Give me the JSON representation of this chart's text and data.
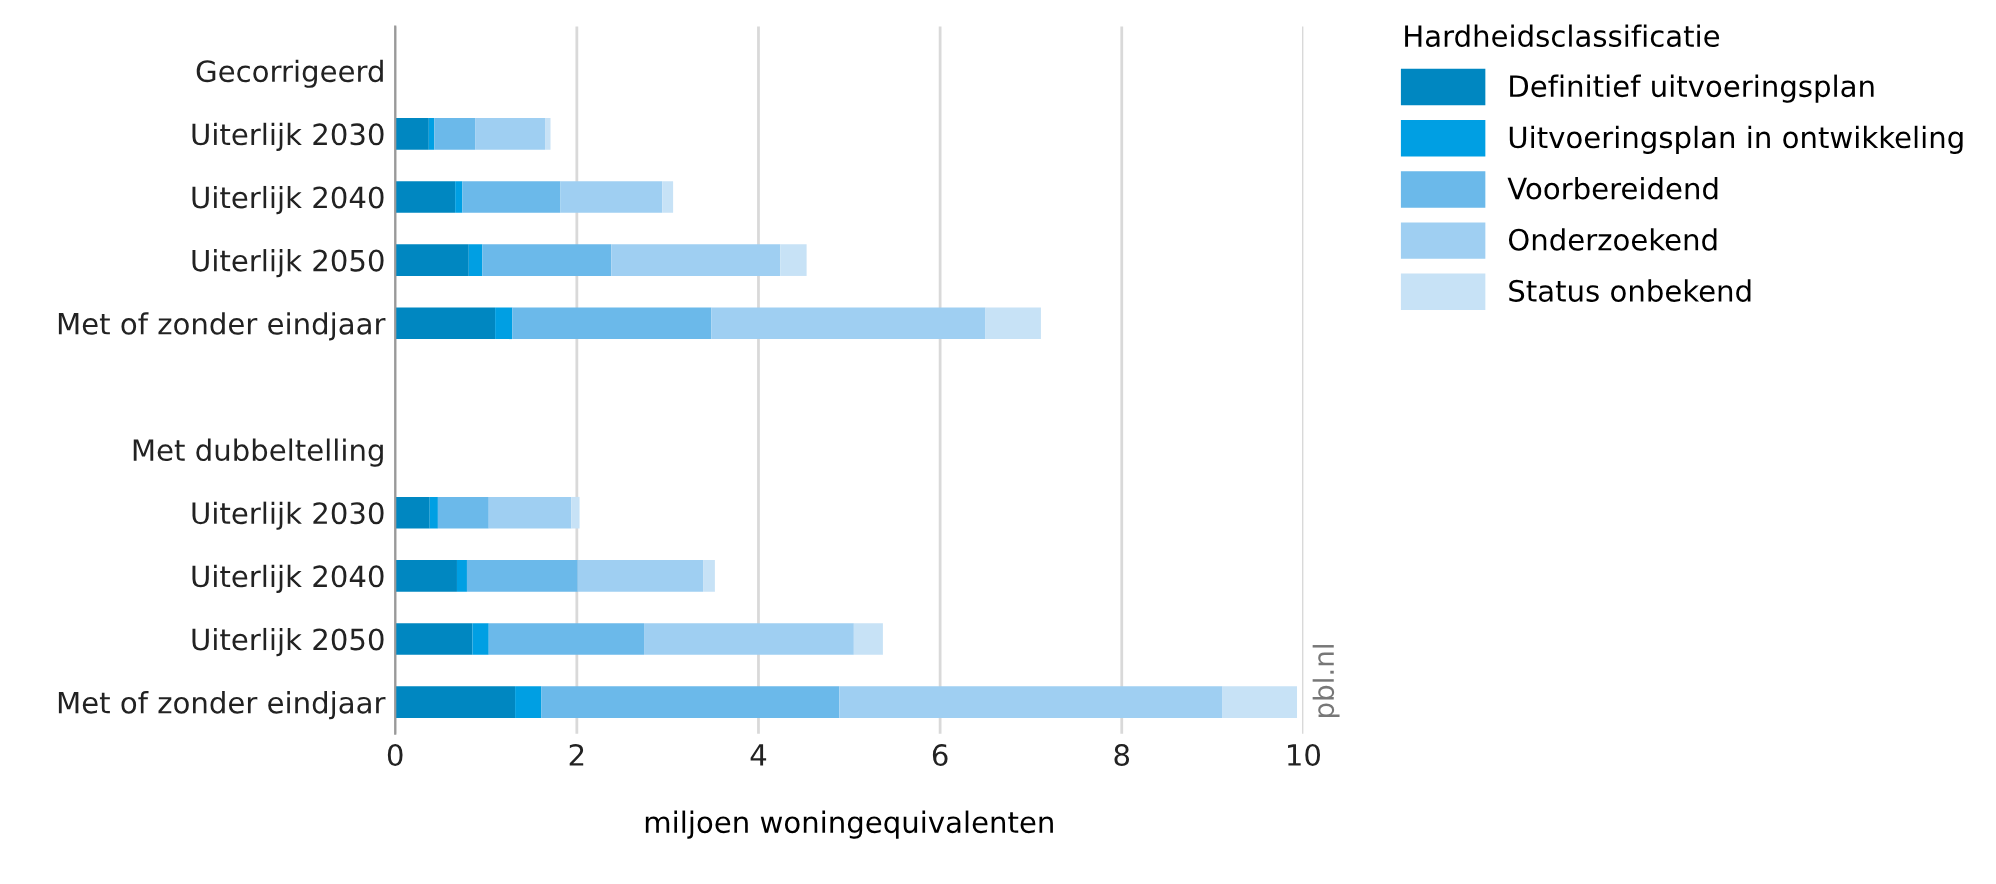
{
  "chart_data": {
    "type": "bar",
    "orientation": "horizontal",
    "stacked": true,
    "categories": [
      "Gecorrigeerd",
      "Uiterlijk 2030",
      "Uiterlijk 2040",
      "Uiterlijk 2050",
      "Met of zonder eindjaar",
      null,
      "Met dubbeltelling",
      "Uiterlijk 2030",
      "Uiterlijk 2040",
      "Uiterlijk 2050",
      "Met of zonder eindjaar"
    ],
    "series": [
      {
        "name": "Definitief uitvoeringsplan",
        "color": "#0087c1",
        "values": [
          null,
          0.37,
          0.66,
          0.81,
          1.1,
          null,
          null,
          0.38,
          0.68,
          0.85,
          1.32
        ]
      },
      {
        "name": "Uitvoeringsplan in ontwikkeling",
        "color": "#009fe3",
        "values": [
          null,
          0.06,
          0.08,
          0.15,
          0.19,
          null,
          null,
          0.09,
          0.11,
          0.18,
          0.29
        ]
      },
      {
        "name": "Voorbereidend",
        "color": "#6bb9ea",
        "values": [
          null,
          0.45,
          1.08,
          1.42,
          2.19,
          null,
          null,
          0.56,
          1.22,
          1.71,
          3.28
        ]
      },
      {
        "name": "Onderzoekend",
        "color": "#9fcff2",
        "values": [
          null,
          0.77,
          1.12,
          1.86,
          3.02,
          null,
          null,
          0.91,
          1.38,
          2.31,
          4.22
        ]
      },
      {
        "name": "Status onbekend",
        "color": "#c7e2f6",
        "values": [
          null,
          0.06,
          0.12,
          0.29,
          0.61,
          null,
          null,
          0.09,
          0.13,
          0.32,
          0.82
        ]
      }
    ],
    "xlim": [
      0,
      10
    ],
    "xticks": [
      0,
      2,
      4,
      6,
      8,
      10
    ],
    "grid": "x",
    "legend": "right",
    "legend_title": "Hardheidsclassificatie",
    "xlabel": "miljoen woningequivalenten",
    "annotations": [
      "pbl.nl"
    ]
  }
}
